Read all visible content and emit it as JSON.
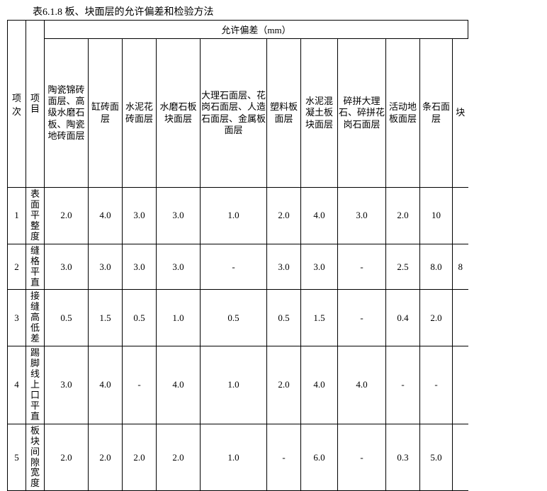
{
  "caption": "表6.1.8 板、块面层的允许偏差和检验方法",
  "group_header": "允许偏差（mm）",
  "head": {
    "idx": "项次",
    "name": "项目",
    "cols": [
      "陶瓷锦砖面层、高级水磨石板、陶瓷地砖面层",
      "缸砖面层",
      "水泥花砖面层",
      "水磨石板块面层",
      "大理石面层、花岗石面层、人造石面层、金属板面层",
      "塑料板面层",
      "水泥混凝土板块面层",
      "碎拼大理石、碎拼花岗石面层",
      "活动地板面层",
      "条石面层",
      "块"
    ]
  },
  "rows": [
    {
      "n": "1",
      "name": "表面平整度",
      "v": [
        "2.0",
        "4.0",
        "3.0",
        "3.0",
        "1.0",
        "2.0",
        "4.0",
        "3.0",
        "2.0",
        "10",
        ""
      ]
    },
    {
      "n": "2",
      "name": "缝格平直",
      "v": [
        "3.0",
        "3.0",
        "3.0",
        "3.0",
        "-",
        "3.0",
        "3.0",
        "-",
        "2.5",
        "8.0",
        "8"
      ]
    },
    {
      "n": "3",
      "name": "接缝高低差",
      "v": [
        "0.5",
        "1.5",
        "0.5",
        "1.0",
        "0.5",
        "0.5",
        "1.5",
        "-",
        "0.4",
        "2.0",
        ""
      ]
    },
    {
      "n": "4",
      "name": "踢脚线上口平直",
      "v": [
        "3.0",
        "4.0",
        "-",
        "4.0",
        "1.0",
        "2.0",
        "4.0",
        "4.0",
        "-",
        "-",
        ""
      ]
    },
    {
      "n": "5",
      "name": "板块间隙宽度",
      "v": [
        "2.0",
        "2.0",
        "2.0",
        "2.0",
        "1.0",
        "-",
        "6.0",
        "-",
        "0.3",
        "5.0",
        ""
      ]
    }
  ]
}
